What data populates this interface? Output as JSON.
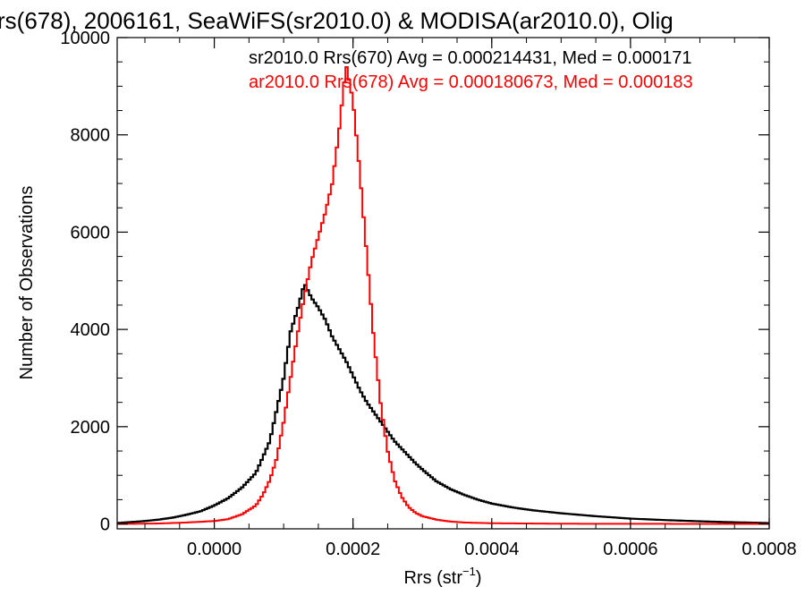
{
  "chart_data": {
    "type": "line",
    "title": "rs(678), 2006161, SeaWiFS(sr2010.0) & MODISA(ar2010.0), Olig",
    "xlabel_main": "Rrs (str",
    "xlabel_sup": "−1",
    "xlabel_close": ")",
    "ylabel": "Number of Observations",
    "xlim": [
      -0.00014,
      0.0008
    ],
    "ylim": [
      -100,
      10000
    ],
    "x_ticks": [
      0.0,
      0.0002,
      0.0004,
      0.0006,
      0.0008
    ],
    "x_tick_labels": [
      "0.0000",
      "0.0002",
      "0.0004",
      "0.0006",
      "0.0008"
    ],
    "y_ticks": [
      0,
      2000,
      4000,
      6000,
      8000,
      10000
    ],
    "y_tick_labels": [
      "0",
      "2000",
      "4000",
      "6000",
      "8000",
      "10000"
    ],
    "legend_placement": "top-right",
    "series": [
      {
        "name": "sr2010.0 Rrs(670) Avg = 0.000214431, Med = 0.000171",
        "color": "#000000",
        "points": [
          [
            -0.00014,
            20
          ],
          [
            -0.00012,
            40
          ],
          [
            -0.0001,
            60
          ],
          [
            -8e-05,
            90
          ],
          [
            -6e-05,
            130
          ],
          [
            -4e-05,
            190
          ],
          [
            -2e-05,
            260
          ],
          [
            0.0,
            380
          ],
          [
            2e-05,
            530
          ],
          [
            4e-05,
            750
          ],
          [
            6e-05,
            1050
          ],
          [
            8e-05,
            1700
          ],
          [
            9e-05,
            2350
          ],
          [
            0.0001,
            3000
          ],
          [
            0.00011,
            3950
          ],
          [
            0.00012,
            4400
          ],
          [
            0.00013,
            4950
          ],
          [
            0.00014,
            4650
          ],
          [
            0.00015,
            4450
          ],
          [
            0.00016,
            4200
          ],
          [
            0.00017,
            3850
          ],
          [
            0.00018,
            3600
          ],
          [
            0.00019,
            3350
          ],
          [
            0.0002,
            3050
          ],
          [
            0.00021,
            2750
          ],
          [
            0.00022,
            2500
          ],
          [
            0.00023,
            2300
          ],
          [
            0.00024,
            2100
          ],
          [
            0.00025,
            1900
          ],
          [
            0.00026,
            1700
          ],
          [
            0.00027,
            1550
          ],
          [
            0.00028,
            1400
          ],
          [
            0.00029,
            1250
          ],
          [
            0.0003,
            1120
          ],
          [
            0.00032,
            880
          ],
          [
            0.00034,
            720
          ],
          [
            0.00036,
            600
          ],
          [
            0.00038,
            500
          ],
          [
            0.0004,
            420
          ],
          [
            0.00043,
            340
          ],
          [
            0.00046,
            280
          ],
          [
            0.0005,
            220
          ],
          [
            0.00055,
            160
          ],
          [
            0.0006,
            110
          ],
          [
            0.00065,
            80
          ],
          [
            0.0007,
            55
          ],
          [
            0.00075,
            35
          ],
          [
            0.0008,
            20
          ]
        ]
      },
      {
        "name": "ar2010.0 Rrs(678) Avg = 0.000180673, Med = 0.000183",
        "color": "#ff0000",
        "points": [
          [
            -0.00014,
            0
          ],
          [
            -8e-05,
            10
          ],
          [
            -4e-05,
            30
          ],
          [
            0.0,
            60
          ],
          [
            2e-05,
            100
          ],
          [
            4e-05,
            200
          ],
          [
            6e-05,
            380
          ],
          [
            7e-05,
            600
          ],
          [
            8e-05,
            900
          ],
          [
            9e-05,
            1350
          ],
          [
            0.0001,
            2100
          ],
          [
            0.00011,
            3000
          ],
          [
            0.00012,
            3900
          ],
          [
            0.00013,
            4700
          ],
          [
            0.00014,
            5400
          ],
          [
            0.00015,
            5900
          ],
          [
            0.00016,
            6400
          ],
          [
            0.00017,
            7000
          ],
          [
            0.00018,
            8100
          ],
          [
            0.00019,
            9450
          ],
          [
            0.0002,
            8700
          ],
          [
            0.00021,
            7200
          ],
          [
            0.00022,
            5500
          ],
          [
            0.00023,
            3800
          ],
          [
            0.00024,
            2450
          ],
          [
            0.00025,
            1500
          ],
          [
            0.00026,
            900
          ],
          [
            0.00027,
            560
          ],
          [
            0.00028,
            350
          ],
          [
            0.00029,
            230
          ],
          [
            0.0003,
            160
          ],
          [
            0.00032,
            90
          ],
          [
            0.00034,
            50
          ],
          [
            0.00036,
            30
          ],
          [
            0.0004,
            15
          ],
          [
            0.0005,
            5
          ],
          [
            0.0008,
            0
          ]
        ]
      }
    ]
  }
}
